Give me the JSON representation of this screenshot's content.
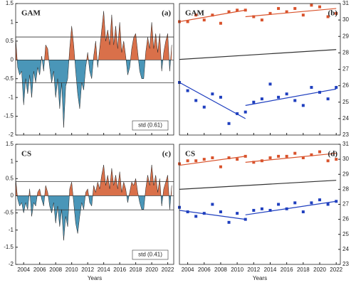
{
  "chart_data": [
    {
      "type": "area",
      "panel_label": "(a)",
      "label": "GAM",
      "annotation": "std (0.61)",
      "x": [
        2003,
        2003.25,
        2003.5,
        2003.75,
        2004,
        2004.25,
        2004.5,
        2004.75,
        2005,
        2005.25,
        2005.5,
        2005.75,
        2006,
        2006.25,
        2006.5,
        2006.75,
        2007,
        2007.25,
        2007.5,
        2007.75,
        2008,
        2008.25,
        2008.5,
        2008.75,
        2009,
        2009.25,
        2009.5,
        2009.75,
        2010,
        2010.25,
        2010.5,
        2010.75,
        2011,
        2011.25,
        2011.5,
        2011.75,
        2012,
        2012.25,
        2012.5,
        2012.75,
        2013,
        2013.25,
        2013.5,
        2013.75,
        2014,
        2014.25,
        2014.5,
        2014.75,
        2015,
        2015.25,
        2015.5,
        2015.75,
        2016,
        2016.25,
        2016.5,
        2016.75,
        2017,
        2017.25,
        2017.5,
        2017.75,
        2018,
        2018.25,
        2018.5,
        2018.75,
        2019,
        2019.25,
        2019.5,
        2019.75,
        2020,
        2020.25,
        2020.5,
        2020.75,
        2021,
        2021.25,
        2021.5,
        2021.75,
        2022,
        2022.25,
        2022.5
      ],
      "values": [
        0.6,
        -0.2,
        -0.4,
        -0.3,
        -1.2,
        -0.5,
        -0.9,
        -0.4,
        -1.0,
        -0.3,
        -0.6,
        -0.2,
        -0.4,
        0.1,
        -0.3,
        0.4,
        0.3,
        -0.2,
        -0.6,
        -0.3,
        -1.0,
        -0.5,
        -1.3,
        -0.6,
        -1.8,
        -0.7,
        -0.5,
        0.3,
        0.9,
        0.4,
        -0.3,
        -0.9,
        -1.3,
        -0.6,
        -0.8,
        -0.2,
        0.2,
        -0.3,
        -0.5,
        0.1,
        0.5,
        -0.2,
        0.3,
        0.8,
        1.3,
        0.5,
        0.8,
        0.4,
        1.2,
        0.4,
        0.9,
        0.3,
        1.0,
        0.2,
        0.5,
        0.1,
        -0.4,
        -0.2,
        0.3,
        0.6,
        0.7,
        0.2,
        -0.3,
        -0.5,
        -0.5,
        0.2,
        0.6,
        0.3,
        1.0,
        0.3,
        0.7,
        0.2,
        0.7,
        -0.3,
        0.2,
        0.5,
        0.7,
        -0.3,
        0.4
      ],
      "pos_color": "#d9704a",
      "neg_color": "#4a96b8",
      "thresholds": [
        0.61,
        -0.61
      ],
      "xlim": [
        2003,
        2022.75
      ],
      "xticks": [
        2004,
        2006,
        2008,
        2010,
        2012,
        2014,
        2016,
        2018,
        2020,
        2022
      ],
      "ylim": [
        -2,
        1.5
      ],
      "yticks": [
        -2,
        -1.5,
        -1,
        -0.5,
        0,
        0.5,
        1,
        1.5
      ]
    },
    {
      "type": "scatter",
      "panel_label": "(b)",
      "label": "GAM",
      "x": [
        2003,
        2004,
        2005,
        2006,
        2007,
        2008,
        2009,
        2010,
        2011,
        2012,
        2013,
        2014,
        2015,
        2016,
        2017,
        2018,
        2019,
        2020,
        2021,
        2022
      ],
      "series": [
        {
          "color": "#d9532c",
          "values": [
            29.9,
            29.9,
            30.3,
            30.0,
            30.3,
            29.8,
            30.5,
            30.6,
            30.6,
            30.2,
            30.0,
            30.4,
            30.7,
            30.5,
            30.7,
            30.3,
            30.9,
            30.8,
            30.2,
            30.4
          ]
        },
        {
          "color": "#1f3fbf",
          "values": [
            26.2,
            25.7,
            25.1,
            24.7,
            25.5,
            25.3,
            23.7,
            24.3,
            24.4,
            25.0,
            25.2,
            26.1,
            25.3,
            25.5,
            25.1,
            24.8,
            25.9,
            25.6,
            25.2,
            25.9
          ]
        }
      ],
      "lines": [
        {
          "color": "#d9532c",
          "x": [
            2003,
            2011
          ],
          "values": [
            29.9,
            30.6
          ]
        },
        {
          "color": "#d9532c",
          "x": [
            2011,
            2022
          ],
          "values": [
            30.2,
            30.7
          ]
        },
        {
          "color": "#1f3fbf",
          "x": [
            2003,
            2011
          ],
          "values": [
            26.2,
            24.0
          ]
        },
        {
          "color": "#1f3fbf",
          "x": [
            2011,
            2022
          ],
          "values": [
            24.8,
            25.8
          ]
        },
        {
          "color": "#333333",
          "x": [
            2003,
            2022
          ],
          "values": [
            27.6,
            28.2
          ]
        }
      ],
      "xlim": [
        2003,
        2022.5
      ],
      "xticks": [
        2004,
        2006,
        2008,
        2010,
        2012,
        2014,
        2016,
        2018,
        2020,
        2022
      ],
      "ylim": [
        23,
        31
      ],
      "yticks": [
        23,
        24,
        25,
        26,
        27,
        28,
        29,
        30,
        31
      ]
    },
    {
      "type": "area",
      "panel_label": "(c)",
      "label": "CS",
      "annotation": "std (0.41)",
      "xlabel": "Years",
      "x": [
        2003,
        2003.25,
        2003.5,
        2003.75,
        2004,
        2004.25,
        2004.5,
        2004.75,
        2005,
        2005.25,
        2005.5,
        2005.75,
        2006,
        2006.25,
        2006.5,
        2006.75,
        2007,
        2007.25,
        2007.5,
        2007.75,
        2008,
        2008.25,
        2008.5,
        2008.75,
        2009,
        2009.25,
        2009.5,
        2009.75,
        2010,
        2010.25,
        2010.5,
        2010.75,
        2011,
        2011.25,
        2011.5,
        2011.75,
        2012,
        2012.25,
        2012.5,
        2012.75,
        2013,
        2013.25,
        2013.5,
        2013.75,
        2014,
        2014.25,
        2014.5,
        2014.75,
        2015,
        2015.25,
        2015.5,
        2015.75,
        2016,
        2016.25,
        2016.5,
        2016.75,
        2017,
        2017.25,
        2017.5,
        2017.75,
        2018,
        2018.25,
        2018.5,
        2018.75,
        2019,
        2019.25,
        2019.5,
        2019.75,
        2020,
        2020.25,
        2020.5,
        2020.75,
        2021,
        2021.25,
        2021.5,
        2021.75,
        2022,
        2022.25,
        2022.5
      ],
      "values": [
        0.5,
        -0.1,
        -0.3,
        -0.2,
        -0.5,
        -0.2,
        -0.4,
        0.2,
        -0.6,
        -0.2,
        -0.3,
        0.1,
        0.2,
        -0.1,
        -0.3,
        0.3,
        0.1,
        -0.3,
        -0.5,
        -0.2,
        -0.8,
        -0.3,
        -0.9,
        -0.4,
        -1.3,
        -0.6,
        -0.9,
        0.2,
        0.4,
        -0.2,
        -0.8,
        -1.1,
        -0.6,
        -0.2,
        -0.4,
        0.1,
        0.2,
        -0.2,
        -0.3,
        0.3,
        0.1,
        0.4,
        0.2,
        0.6,
        0.9,
        0.3,
        0.6,
        0.2,
        0.8,
        0.3,
        0.6,
        0.2,
        0.7,
        0.1,
        0.4,
        0.2,
        -0.2,
        0.1,
        0.4,
        0.3,
        0.5,
        0.1,
        -0.2,
        -0.4,
        -0.4,
        0.2,
        0.6,
        0.3,
        0.9,
        0.3,
        0.6,
        0.1,
        0.5,
        -0.3,
        0.2,
        0.4,
        0.6,
        -0.4,
        0.3
      ],
      "pos_color": "#d9704a",
      "neg_color": "#4a96b8",
      "thresholds": [
        0.41,
        -0.41
      ],
      "xlim": [
        2003,
        2022.75
      ],
      "xticks": [
        2004,
        2006,
        2008,
        2010,
        2012,
        2014,
        2016,
        2018,
        2020,
        2022
      ],
      "ylim": [
        -2,
        1.5
      ],
      "yticks": [
        -2,
        -1.5,
        -1,
        -0.5,
        0,
        0.5,
        1,
        1.5
      ]
    },
    {
      "type": "scatter",
      "panel_label": "(d)",
      "label": "CS",
      "xlabel": "Years",
      "x": [
        2003,
        2004,
        2005,
        2006,
        2007,
        2008,
        2009,
        2010,
        2011,
        2012,
        2013,
        2014,
        2015,
        2016,
        2017,
        2018,
        2019,
        2020,
        2021,
        2022
      ],
      "series": [
        {
          "color": "#d9532c",
          "values": [
            29.7,
            29.9,
            29.9,
            30.0,
            30.1,
            29.5,
            30.1,
            30.0,
            30.2,
            29.8,
            29.9,
            30.1,
            30.2,
            30.2,
            30.4,
            30.1,
            30.3,
            30.5,
            29.9,
            30.0
          ]
        },
        {
          "color": "#1f3fbf",
          "values": [
            26.8,
            26.5,
            26.2,
            26.4,
            27.0,
            26.5,
            25.8,
            26.4,
            26.0,
            26.6,
            26.7,
            26.6,
            27.0,
            26.7,
            27.1,
            26.5,
            27.1,
            27.3,
            27.0,
            27.2
          ]
        }
      ],
      "lines": [
        {
          "color": "#d9532c",
          "x": [
            2003,
            2011
          ],
          "values": [
            29.6,
            30.2
          ]
        },
        {
          "color": "#d9532c",
          "x": [
            2011,
            2022
          ],
          "values": [
            29.8,
            30.4
          ]
        },
        {
          "color": "#1f3fbf",
          "x": [
            2003,
            2011
          ],
          "values": [
            26.6,
            26.0
          ]
        },
        {
          "color": "#1f3fbf",
          "x": [
            2011,
            2022
          ],
          "values": [
            26.3,
            27.2
          ]
        },
        {
          "color": "#333333",
          "x": [
            2003,
            2022
          ],
          "values": [
            28.0,
            28.6
          ]
        }
      ],
      "xlim": [
        2003,
        2022.5
      ],
      "xticks": [
        2004,
        2006,
        2008,
        2010,
        2012,
        2014,
        2016,
        2018,
        2020,
        2022
      ],
      "ylim": [
        23,
        31
      ],
      "yticks": [
        23,
        24,
        25,
        26,
        27,
        28,
        29,
        30,
        31
      ]
    }
  ]
}
